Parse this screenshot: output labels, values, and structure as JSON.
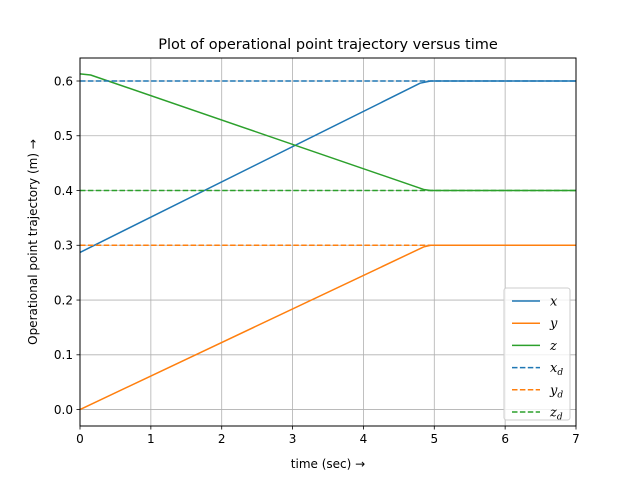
{
  "chart_data": {
    "type": "line",
    "title": "Plot of operational point trajectory versus time",
    "xlabel": "time (sec)  →",
    "ylabel": "Operational point trajectory (m)  →",
    "xlim": [
      0,
      7
    ],
    "ylim": [
      -0.03,
      0.642
    ],
    "xticks": [
      0,
      1,
      2,
      3,
      4,
      5,
      6,
      7
    ],
    "yticks": [
      0.0,
      0.1,
      0.2,
      0.3,
      0.4,
      0.5,
      0.6
    ],
    "grid": true,
    "legend_position": "lower-right",
    "series": [
      {
        "name": "x",
        "sub": "",
        "color": "#1f77b4",
        "dash": false,
        "x": [
          0,
          4.8,
          4.95,
          7
        ],
        "y": [
          0.287,
          0.596,
          0.6,
          0.6
        ]
      },
      {
        "name": "y",
        "sub": "",
        "color": "#ff7f0e",
        "dash": false,
        "x": [
          0,
          4.85,
          4.95,
          7
        ],
        "y": [
          0.0,
          0.297,
          0.3,
          0.3
        ]
      },
      {
        "name": "z",
        "sub": "",
        "color": "#2ca02c",
        "dash": false,
        "x": [
          0,
          0.15,
          4.85,
          4.95,
          7
        ],
        "y": [
          0.613,
          0.611,
          0.402,
          0.4,
          0.4
        ]
      },
      {
        "name": "x",
        "sub": "d",
        "color": "#1f77b4",
        "dash": true,
        "x": [
          0,
          7
        ],
        "y": [
          0.6,
          0.6
        ]
      },
      {
        "name": "y",
        "sub": "d",
        "color": "#ff7f0e",
        "dash": true,
        "x": [
          0,
          7
        ],
        "y": [
          0.3,
          0.3
        ]
      },
      {
        "name": "z",
        "sub": "d",
        "color": "#2ca02c",
        "dash": true,
        "x": [
          0,
          7
        ],
        "y": [
          0.4,
          0.4
        ]
      }
    ]
  }
}
